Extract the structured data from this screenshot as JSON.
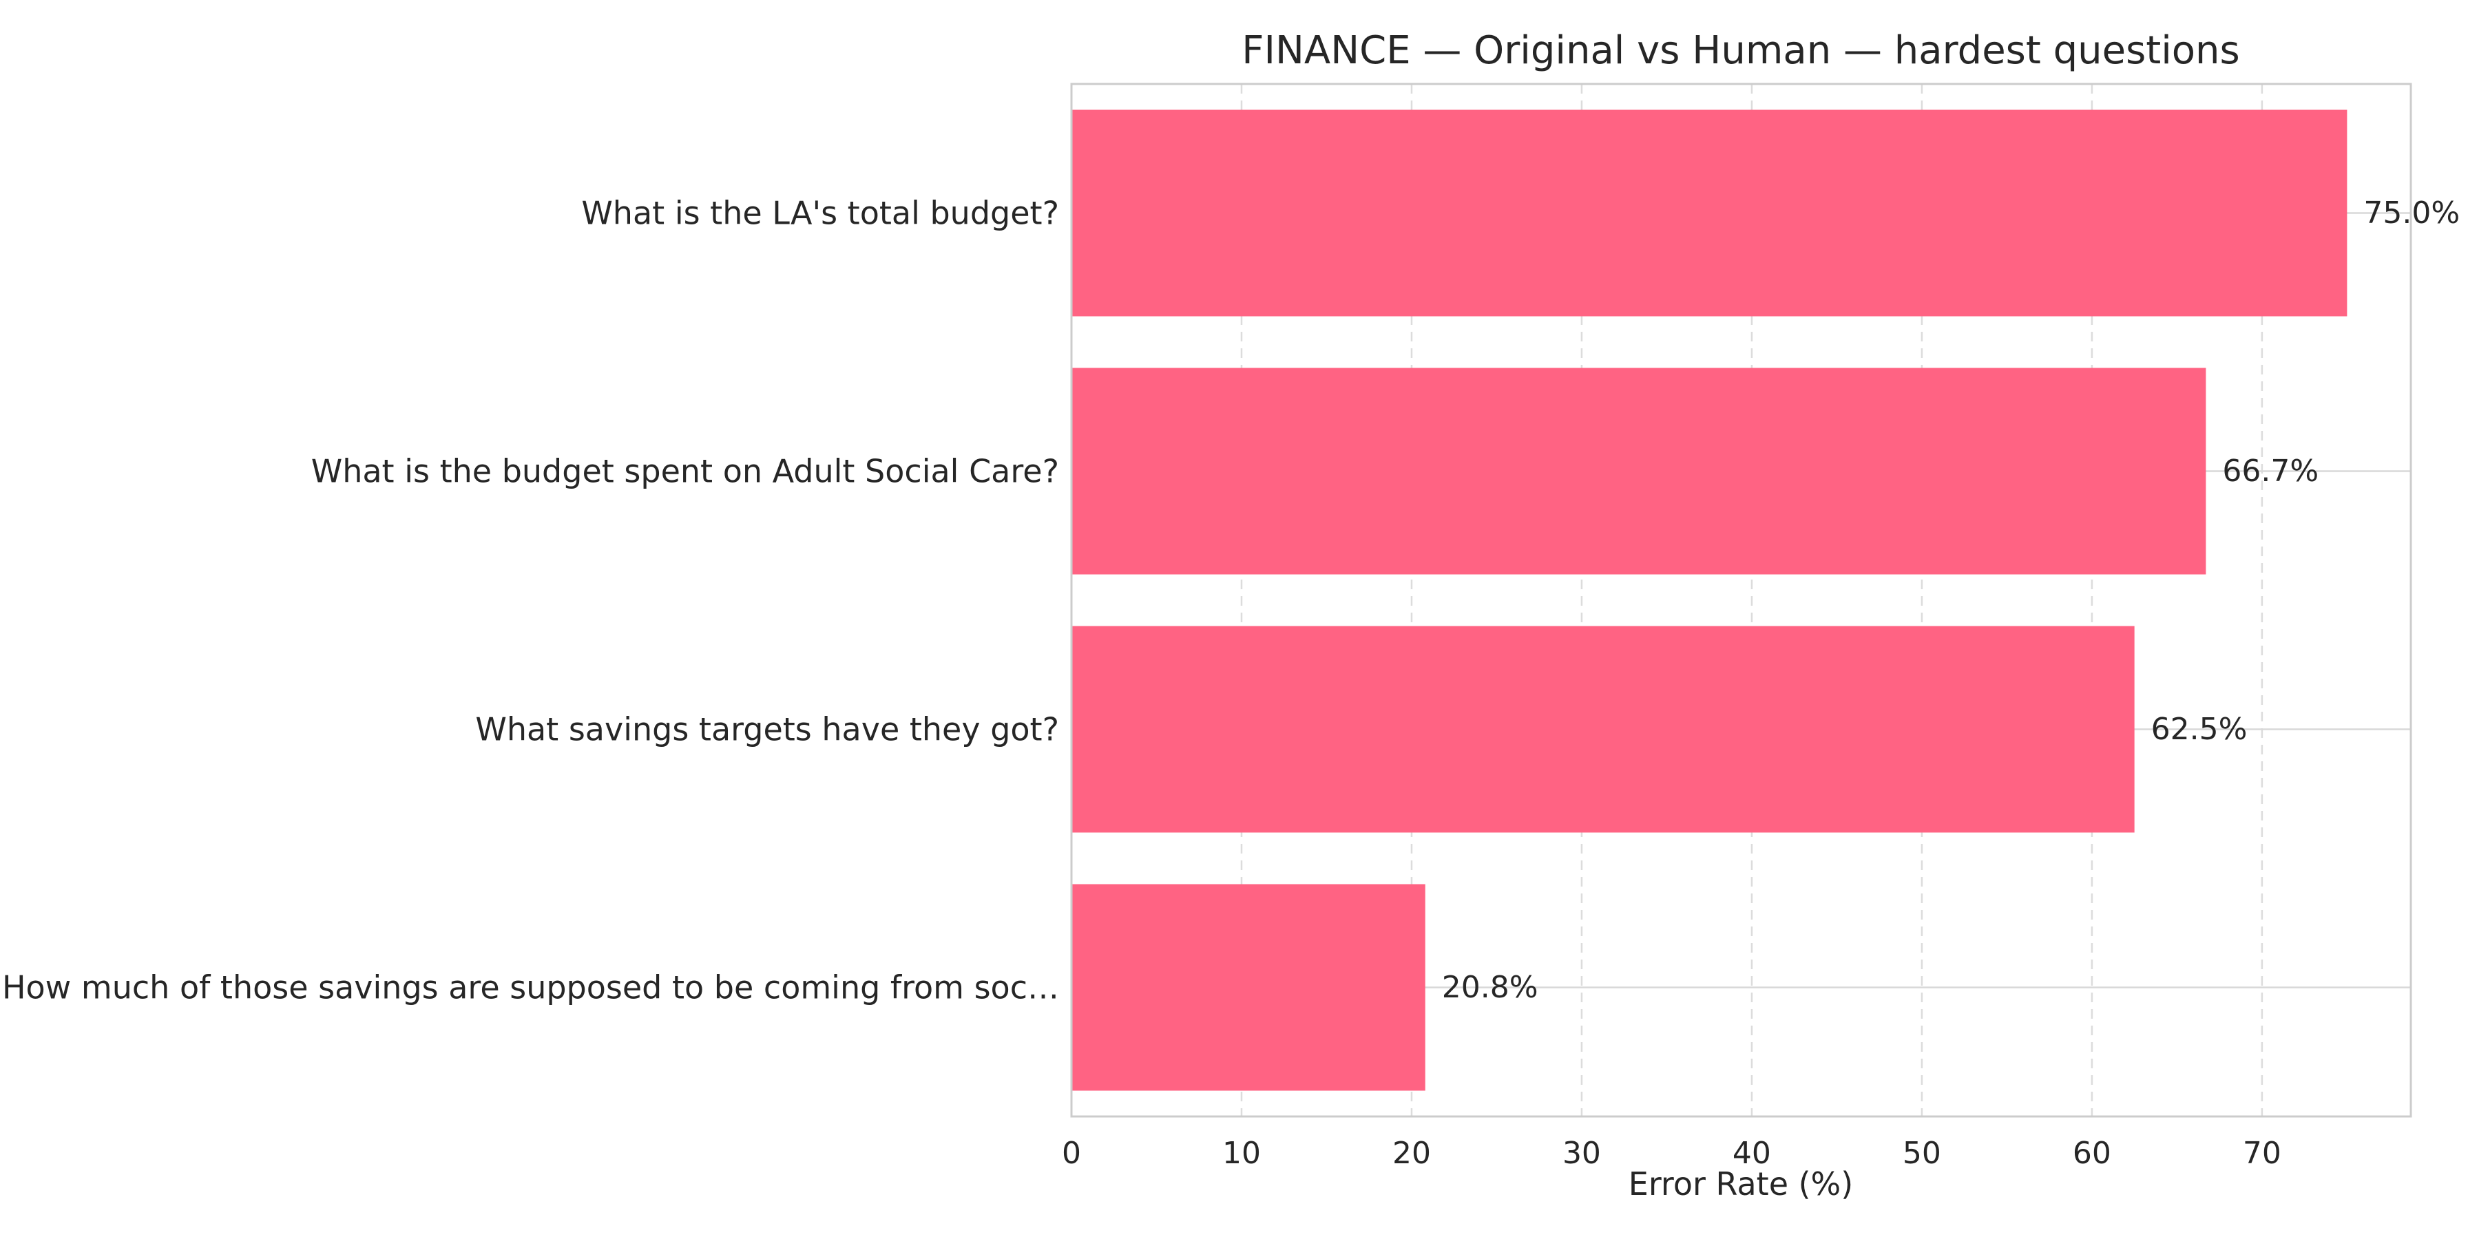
{
  "chart_data": {
    "type": "bar",
    "orientation": "horizontal",
    "title": "FINANCE — Original vs Human — hardest questions",
    "xlabel": "Error Rate (%)",
    "ylabel": "",
    "xlim": [
      0,
      78.75
    ],
    "xticks": [
      0,
      10,
      20,
      30,
      40,
      50,
      60,
      70
    ],
    "x_grid": "dashed",
    "y_grid": "solid",
    "legend": "none",
    "bar_color": "#ff6383",
    "categories": [
      "What is the LA's total budget?",
      "What is the budget spent on Adult Social Care?",
      "What savings targets have they got?",
      "How much of those savings are supposed to be coming from soc…"
    ],
    "values": [
      75.0,
      66.7,
      62.5,
      20.8
    ],
    "value_labels": [
      "75.0%",
      "66.7%",
      "62.5%",
      "20.8%"
    ]
  }
}
